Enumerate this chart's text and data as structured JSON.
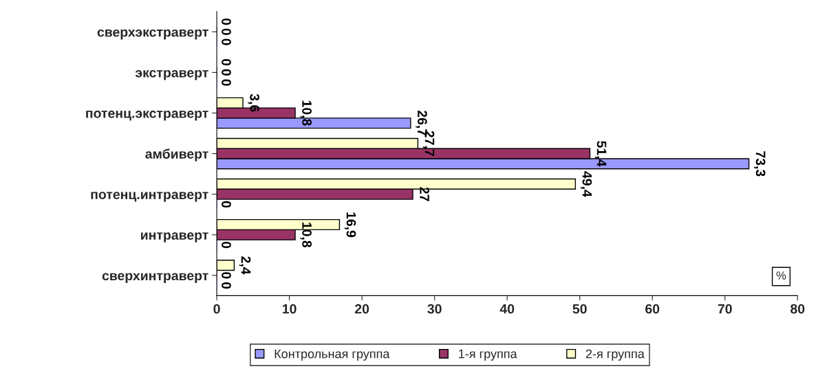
{
  "chart_data": {
    "type": "bar",
    "orientation": "horizontal",
    "categories": [
      "сверхэкстраверт",
      "экстраверт",
      "потенц.экстраверт",
      "амбиверт",
      "потенц.интраверт",
      "интраверт",
      "сверхинтраверт"
    ],
    "series": [
      {
        "name": "Контрольная группа",
        "color": "#9999ff",
        "values": [
          0,
          0,
          26.7,
          73.3,
          0,
          0,
          0
        ],
        "value_labels": [
          "0",
          "0",
          "26,7",
          "73,3",
          "0",
          "0",
          "0"
        ]
      },
      {
        "name": "1-я группа",
        "color": "#993366",
        "values": [
          0,
          0,
          10.8,
          51.4,
          27,
          10.8,
          0
        ],
        "value_labels": [
          "0",
          "0",
          "10,8",
          "51,4",
          "27",
          "10,8",
          "0"
        ]
      },
      {
        "name": "2-я группа",
        "color": "#ffffcc",
        "values": [
          0,
          0,
          3.6,
          27.7,
          49.4,
          16.9,
          2.4
        ],
        "value_labels": [
          "0",
          "0",
          "3,6",
          "27,7",
          "49,4",
          "16,9",
          "2,4"
        ]
      }
    ],
    "xlim": [
      0,
      80
    ],
    "xticks": [
      0,
      10,
      20,
      30,
      40,
      50,
      60,
      70,
      80
    ],
    "annotations": [
      "%"
    ],
    "legend": "bottom",
    "grid": false
  }
}
